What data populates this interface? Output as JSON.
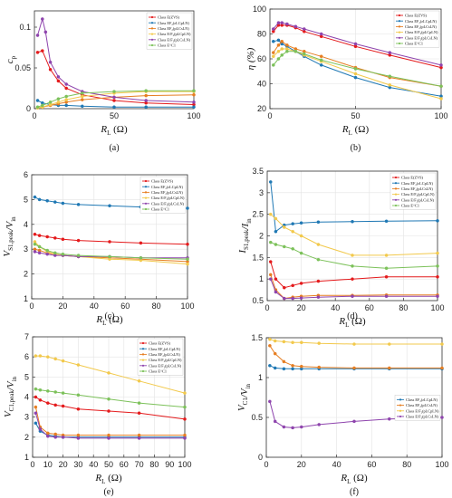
{
  "chart_data": [
    {
      "type": "line",
      "panel": "(a)",
      "xlabel": "R_L (Ω)",
      "ylabel": "c_p",
      "xlim": [
        0,
        100
      ],
      "ylim": [
        0,
        0.12
      ],
      "xticks": [
        0,
        50,
        100
      ],
      "yticks": [
        0,
        0.05,
        0.1
      ],
      "ytick_labels": [
        "0",
        "0.05",
        "0.1"
      ],
      "grid": false,
      "legend_position": "top-right",
      "series": [
        {
          "name": "Class E(ZVS)",
          "color": "#e41a1c",
          "x": [
            2,
            5,
            10,
            15,
            20,
            30,
            50,
            70,
            100
          ],
          "y": [
            0.069,
            0.071,
            0.048,
            0.034,
            0.025,
            0.017,
            0.01,
            0.007,
            0.005
          ]
        },
        {
          "name": "Class EF₂(εLCpLN)",
          "color": "#1f78b4",
          "x": [
            2,
            5,
            10,
            15,
            20,
            30,
            50,
            70,
            100
          ],
          "y": [
            0.01,
            0.007,
            0.005,
            0.004,
            0.004,
            0.003,
            0.002,
            0.002,
            0.002
          ]
        },
        {
          "name": "Class EF₂(pLCsLN)",
          "color": "#e67e22",
          "x": [
            2,
            5,
            10,
            15,
            20,
            30,
            50,
            70,
            100
          ],
          "y": [
            0.001,
            0.002,
            0.004,
            0.006,
            0.008,
            0.011,
            0.014,
            0.016,
            0.017
          ]
        },
        {
          "name": "Class E/F₂(pLCpLN)",
          "color": "#f2c94c",
          "x": [
            2,
            5,
            10,
            15,
            20,
            30,
            50,
            70,
            100
          ],
          "y": [
            0.001,
            0.002,
            0.005,
            0.008,
            0.011,
            0.015,
            0.019,
            0.021,
            0.021
          ]
        },
        {
          "name": "Class E/F₂(pLCsLN)",
          "color": "#8e44ad",
          "x": [
            2,
            5,
            7,
            10,
            15,
            20,
            30,
            50,
            70,
            100
          ],
          "y": [
            0.09,
            0.11,
            0.094,
            0.057,
            0.039,
            0.03,
            0.021,
            0.014,
            0.01,
            0.008
          ]
        },
        {
          "name": "Class E^C1",
          "color": "#7cc15a",
          "x": [
            2,
            5,
            10,
            15,
            20,
            30,
            50,
            70,
            100
          ],
          "y": [
            0.002,
            0.004,
            0.008,
            0.012,
            0.015,
            0.019,
            0.021,
            0.022,
            0.022
          ]
        }
      ]
    },
    {
      "type": "line",
      "panel": "(b)",
      "xlabel": "R_L (Ω)",
      "ylabel": "η (%)",
      "xlim": [
        0,
        100
      ],
      "ylim": [
        20,
        100
      ],
      "xticks": [
        0,
        50,
        100
      ],
      "yticks": [
        20,
        40,
        60,
        80,
        100
      ],
      "grid": true,
      "legend_position": "top-right",
      "series": [
        {
          "name": "Class E(ZVS)",
          "color": "#e41a1c",
          "x": [
            2,
            5,
            7,
            10,
            15,
            20,
            30,
            50,
            70,
            100
          ],
          "y": [
            82,
            87,
            87,
            87,
            85,
            82,
            78,
            70,
            63,
            53
          ]
        },
        {
          "name": "Class EF₂(εLCpLN)",
          "color": "#1f78b4",
          "x": [
            2,
            5,
            7,
            10,
            15,
            20,
            30,
            50,
            70,
            100
          ],
          "y": [
            74,
            75,
            72,
            70,
            66,
            62,
            55,
            45,
            37,
            30
          ]
        },
        {
          "name": "Class EF₂(pLCsLN)",
          "color": "#e67e22",
          "x": [
            2,
            5,
            7,
            10,
            15,
            20,
            30,
            50,
            70,
            100
          ],
          "y": [
            65,
            71,
            74,
            71,
            68,
            66,
            62,
            53,
            45,
            38
          ]
        },
        {
          "name": "Class E/F₂(pLCpLN)",
          "color": "#f2c94c",
          "x": [
            2,
            5,
            7,
            10,
            15,
            20,
            30,
            50,
            70,
            100
          ],
          "y": [
            62,
            66,
            68,
            68,
            66,
            63,
            58,
            48,
            39,
            28
          ]
        },
        {
          "name": "Class E/F₂(pLCsLN)",
          "color": "#8e44ad",
          "x": [
            2,
            5,
            7,
            10,
            15,
            20,
            30,
            50,
            70,
            100
          ],
          "y": [
            84,
            89,
            89,
            88,
            86,
            84,
            80,
            72,
            65,
            55
          ]
        },
        {
          "name": "Class E^C1",
          "color": "#7cc15a",
          "x": [
            2,
            5,
            7,
            10,
            15,
            20,
            30,
            50,
            70,
            100
          ],
          "y": [
            55,
            60,
            63,
            66,
            66,
            64,
            59,
            52,
            46,
            38
          ]
        }
      ]
    },
    {
      "type": "line",
      "panel": "(c)",
      "xlabel": "R_L (Ω)",
      "ylabel": "V_S1,peak/V_in",
      "xlim": [
        0,
        100
      ],
      "ylim": [
        1,
        6
      ],
      "xticks": [
        0,
        20,
        40,
        60,
        80,
        100
      ],
      "yticks": [
        1,
        2,
        3,
        4,
        5,
        6
      ],
      "grid": true,
      "legend_position": "top-right",
      "series": [
        {
          "name": "Class E(ZVS)",
          "color": "#e41a1c",
          "x": [
            2,
            5,
            10,
            15,
            20,
            30,
            50,
            70,
            100
          ],
          "y": [
            3.6,
            3.55,
            3.5,
            3.45,
            3.4,
            3.35,
            3.3,
            3.25,
            3.2
          ]
        },
        {
          "name": "Class EF₂(εLCpLN)",
          "color": "#1f78b4",
          "x": [
            2,
            5,
            10,
            15,
            20,
            30,
            50,
            70,
            100
          ],
          "y": [
            5.1,
            5.0,
            4.95,
            4.9,
            4.85,
            4.8,
            4.75,
            4.7,
            4.65
          ]
        },
        {
          "name": "Class EF₂(pLCsLN)",
          "color": "#e67e22",
          "x": [
            2,
            5,
            10,
            15,
            20,
            30,
            50,
            70,
            100
          ],
          "y": [
            3.0,
            2.95,
            2.85,
            2.8,
            2.75,
            2.7,
            2.65,
            2.6,
            2.5
          ]
        },
        {
          "name": "Class E/F₂(pLCpLN)",
          "color": "#f2c94c",
          "x": [
            2,
            5,
            10,
            15,
            20,
            30,
            50,
            70,
            100
          ],
          "y": [
            3.3,
            3.1,
            2.9,
            2.8,
            2.75,
            2.7,
            2.6,
            2.55,
            2.4
          ]
        },
        {
          "name": "Class E/F₂(pLCsLN)",
          "color": "#8e44ad",
          "x": [
            2,
            5,
            10,
            15,
            20,
            30,
            50,
            70,
            100
          ],
          "y": [
            2.9,
            2.85,
            2.8,
            2.75,
            2.75,
            2.7,
            2.7,
            2.65,
            2.65
          ]
        },
        {
          "name": "Class E^C1",
          "color": "#7cc15a",
          "x": [
            2,
            5,
            10,
            15,
            20,
            30,
            50,
            70,
            100
          ],
          "y": [
            3.2,
            3.1,
            2.95,
            2.85,
            2.8,
            2.75,
            2.7,
            2.65,
            2.6
          ]
        }
      ]
    },
    {
      "type": "line",
      "panel": "(d)",
      "xlabel": "R_L (Ω)",
      "ylabel": "I_S1,peak/I_in",
      "xlim": [
        0,
        100
      ],
      "ylim": [
        0.5,
        3.5
      ],
      "xticks": [
        0,
        20,
        40,
        60,
        80,
        100
      ],
      "yticks": [
        0.5,
        1,
        1.5,
        2,
        2.5,
        3,
        3.5
      ],
      "grid": true,
      "legend_position": "top-right",
      "series": [
        {
          "name": "Class E(ZVS)",
          "color": "#e41a1c",
          "x": [
            2,
            5,
            10,
            15,
            20,
            30,
            50,
            70,
            100
          ],
          "y": [
            1.4,
            1.0,
            0.8,
            0.85,
            0.9,
            0.95,
            1.0,
            1.05,
            1.05
          ]
        },
        {
          "name": "Class EF₂(εLCpLN)",
          "color": "#1f78b4",
          "x": [
            2,
            5,
            10,
            15,
            20,
            30,
            50,
            70,
            100
          ],
          "y": [
            3.25,
            2.1,
            2.25,
            2.28,
            2.3,
            2.32,
            2.33,
            2.34,
            2.35
          ]
        },
        {
          "name": "Class EF₂(pLCsLN)",
          "color": "#e67e22",
          "x": [
            2,
            5,
            10,
            15,
            20,
            30,
            50,
            70,
            100
          ],
          "y": [
            1.1,
            0.75,
            0.55,
            0.58,
            0.6,
            0.62,
            0.62,
            0.63,
            0.63
          ]
        },
        {
          "name": "Class E/F₂(pLCpLN)",
          "color": "#f2c94c",
          "x": [
            2,
            5,
            10,
            15,
            20,
            30,
            50,
            70,
            100
          ],
          "y": [
            2.5,
            2.4,
            2.2,
            2.1,
            2.0,
            1.8,
            1.55,
            1.55,
            1.6
          ]
        },
        {
          "name": "Class E/F₂(pLCsLN)",
          "color": "#8e44ad",
          "x": [
            2,
            5,
            10,
            15,
            20,
            30,
            50,
            70,
            100
          ],
          "y": [
            1.0,
            0.7,
            0.55,
            0.55,
            0.56,
            0.58,
            0.6,
            0.6,
            0.6
          ]
        },
        {
          "name": "Class E^C1",
          "color": "#7cc15a",
          "x": [
            2,
            5,
            10,
            15,
            20,
            30,
            50,
            70,
            100
          ],
          "y": [
            1.85,
            1.8,
            1.75,
            1.7,
            1.6,
            1.45,
            1.3,
            1.25,
            1.3
          ]
        }
      ]
    },
    {
      "type": "line",
      "panel": "(e)",
      "xlabel": "R_L (Ω)",
      "ylabel": "V_C1,peak/V_in",
      "xlim": [
        0,
        100
      ],
      "ylim": [
        1,
        7
      ],
      "xticks": [
        0,
        10,
        20,
        30,
        40,
        50,
        60,
        70,
        80,
        90,
        100
      ],
      "yticks": [
        1,
        2,
        3,
        4,
        5,
        6,
        7
      ],
      "grid": true,
      "legend_position": "top-right",
      "series": [
        {
          "name": "Class E(ZVS)",
          "color": "#e41a1c",
          "x": [
            2,
            5,
            10,
            15,
            20,
            30,
            50,
            70,
            100
          ],
          "y": [
            4.0,
            3.85,
            3.7,
            3.6,
            3.55,
            3.4,
            3.3,
            3.2,
            2.9
          ]
        },
        {
          "name": "Class EF₂(εLCpLN)",
          "color": "#1f78b4",
          "x": [
            2,
            5,
            10,
            15,
            20,
            30,
            50,
            70,
            100
          ],
          "y": [
            2.7,
            2.3,
            2.1,
            2.05,
            2.0,
            2.0,
            2.0,
            2.0,
            2.0
          ]
        },
        {
          "name": "Class EF₂(pLCsLN)",
          "color": "#e67e22",
          "x": [
            2,
            5,
            10,
            15,
            20,
            30,
            50,
            70,
            100
          ],
          "y": [
            3.5,
            2.5,
            2.2,
            2.15,
            2.1,
            2.1,
            2.1,
            2.1,
            2.1
          ]
        },
        {
          "name": "Class E/F₂(pLCpLN)",
          "color": "#f2c94c",
          "x": [
            2,
            5,
            10,
            15,
            20,
            30,
            50,
            70,
            100
          ],
          "y": [
            6.05,
            6.05,
            6.0,
            5.9,
            5.8,
            5.6,
            5.2,
            4.8,
            4.2
          ]
        },
        {
          "name": "Class E/F₂(pLCsLN)",
          "color": "#8e44ad",
          "x": [
            2,
            5,
            10,
            15,
            20,
            30,
            50,
            70,
            100
          ],
          "y": [
            3.2,
            2.4,
            2.05,
            2.0,
            2.0,
            1.95,
            1.95,
            1.95,
            1.95
          ]
        },
        {
          "name": "Class E^C1",
          "color": "#7cc15a",
          "x": [
            2,
            5,
            10,
            15,
            20,
            30,
            50,
            70,
            100
          ],
          "y": [
            4.4,
            4.35,
            4.3,
            4.25,
            4.2,
            4.1,
            3.9,
            3.7,
            3.5
          ]
        }
      ]
    },
    {
      "type": "line",
      "panel": "(f)",
      "xlabel": "R_L (Ω)",
      "ylabel": "V_C1/V_in",
      "xlim": [
        0,
        100
      ],
      "ylim": [
        0,
        1.5
      ],
      "xticks": [
        0,
        20,
        40,
        60,
        80,
        100
      ],
      "yticks": [
        0,
        0.5,
        1,
        1.5
      ],
      "grid": true,
      "legend_position": "center-right",
      "series": [
        {
          "name": "Class EF₂(εLCpLN)",
          "color": "#1f78b4",
          "x": [
            2,
            5,
            10,
            15,
            20,
            30,
            50,
            70,
            100
          ],
          "y": [
            1.15,
            1.12,
            1.11,
            1.11,
            1.11,
            1.11,
            1.11,
            1.11,
            1.11
          ]
        },
        {
          "name": "Class EF₂(pLCsLN)",
          "color": "#e67e22",
          "x": [
            2,
            5,
            10,
            15,
            20,
            30,
            50,
            70,
            100
          ],
          "y": [
            1.4,
            1.3,
            1.2,
            1.15,
            1.14,
            1.13,
            1.12,
            1.12,
            1.12
          ]
        },
        {
          "name": "Class E/F₂(pLCpLN)",
          "color": "#f2c94c",
          "x": [
            2,
            5,
            10,
            15,
            20,
            30,
            50,
            70,
            100
          ],
          "y": [
            1.48,
            1.46,
            1.45,
            1.44,
            1.44,
            1.43,
            1.42,
            1.42,
            1.42
          ]
        },
        {
          "name": "Class E/F₂(pLCsLN)",
          "color": "#8e44ad",
          "x": [
            2,
            5,
            10,
            15,
            20,
            30,
            50,
            70,
            100
          ],
          "y": [
            0.7,
            0.45,
            0.38,
            0.37,
            0.38,
            0.41,
            0.45,
            0.48,
            0.5
          ]
        }
      ]
    }
  ]
}
